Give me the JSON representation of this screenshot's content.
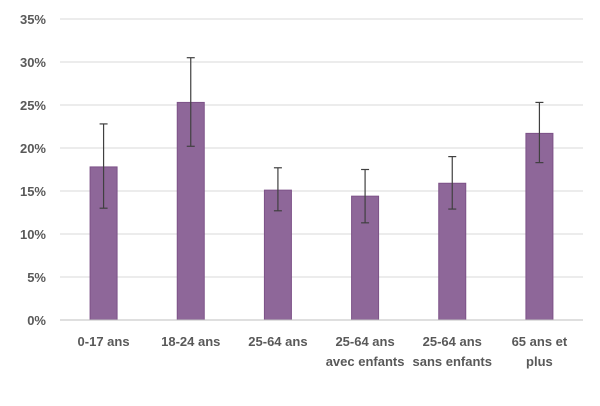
{
  "chart_data": {
    "type": "bar",
    "title": "",
    "xlabel": "",
    "ylabel": "",
    "categories": [
      [
        "0-17 ans"
      ],
      [
        "18-24 ans"
      ],
      [
        "25-64 ans"
      ],
      [
        "25-64 ans",
        "avec enfants"
      ],
      [
        "25-64 ans",
        "sans enfants"
      ],
      [
        "65 ans et",
        "plus"
      ]
    ],
    "values": [
      17.8,
      25.3,
      15.1,
      14.4,
      15.9,
      21.7
    ],
    "error_low": [
      13.0,
      20.2,
      12.7,
      11.3,
      12.9,
      18.3
    ],
    "error_high": [
      22.8,
      30.5,
      17.7,
      17.5,
      19.0,
      25.3
    ],
    "ylim": [
      0,
      35
    ],
    "yticks": [
      0,
      5,
      10,
      15,
      20,
      25,
      30,
      35
    ],
    "ytick_format": "{v}%",
    "grid": true,
    "legend": "none",
    "colors": {
      "bar_fill": "#8e6799",
      "bar_stroke": "#7d5288",
      "error_bar": "#404040",
      "grid": "#d9d9d9",
      "text": "#595959"
    }
  }
}
